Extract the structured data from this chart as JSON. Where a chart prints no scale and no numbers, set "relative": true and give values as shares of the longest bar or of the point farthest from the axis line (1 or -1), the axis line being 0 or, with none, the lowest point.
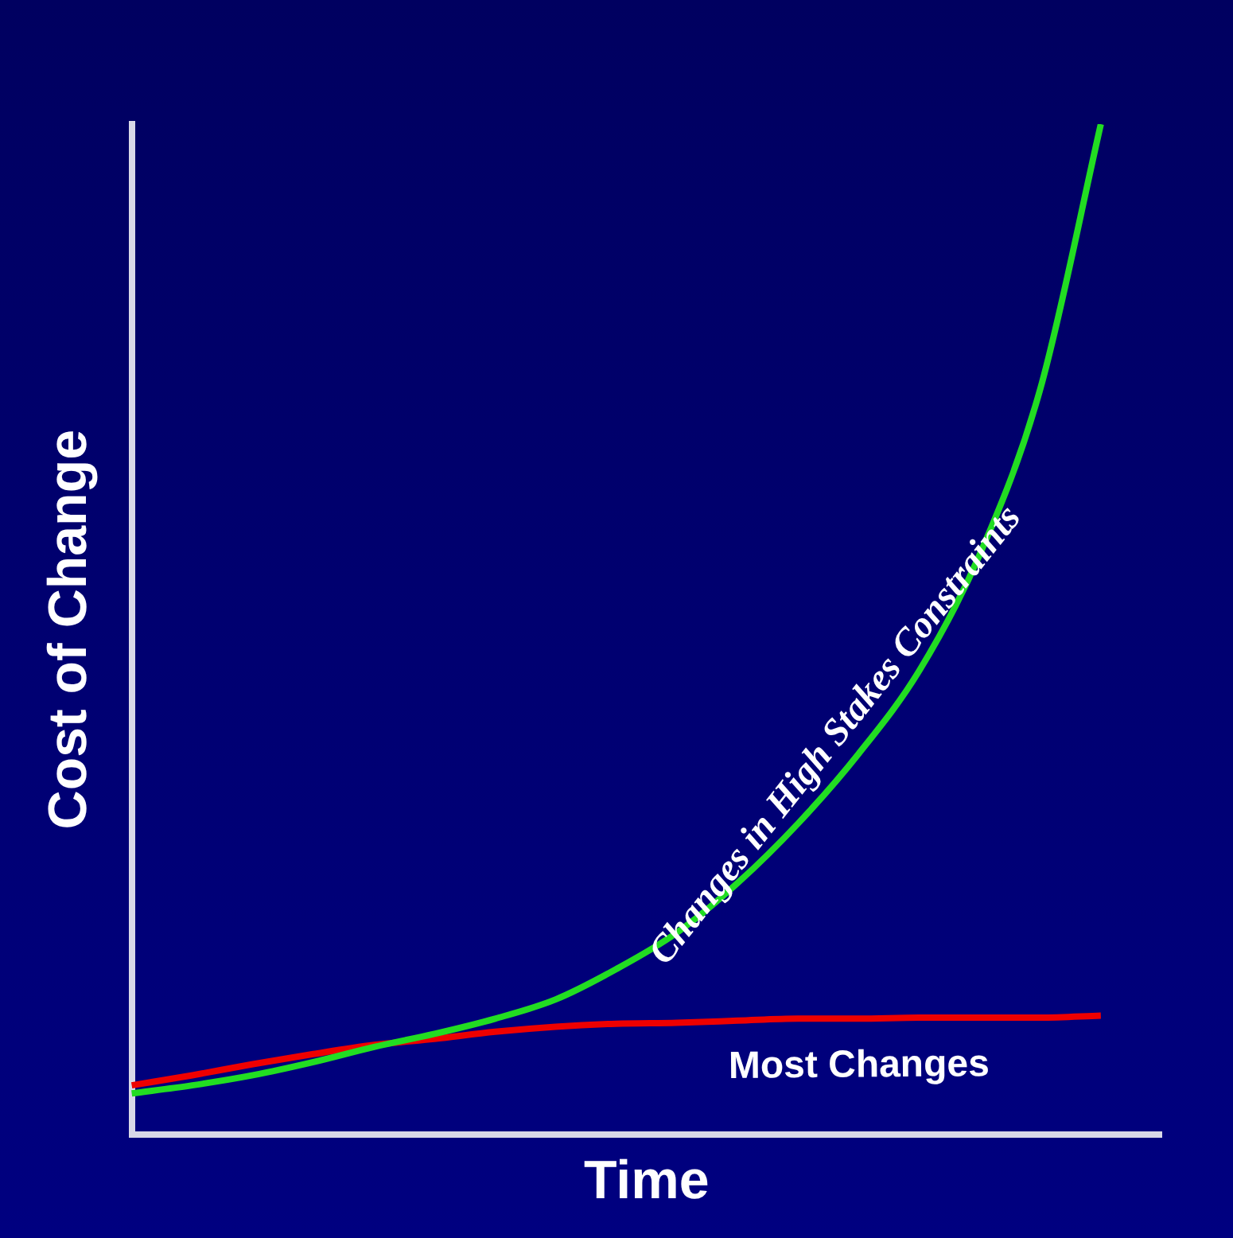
{
  "chart_data": {
    "type": "line",
    "relative": true,
    "xlabel": "Time",
    "ylabel": "Cost of Change",
    "categories": [
      null,
      null,
      null,
      null,
      null,
      null,
      null,
      null,
      null,
      null,
      null,
      null,
      null,
      null,
      null,
      null,
      null,
      null
    ],
    "series": [
      {
        "name": "Changes in High Stakes Constraints",
        "color": "#22dd22",
        "values": [
          0.041,
          0.049,
          0.059,
          0.072,
          0.087,
          0.1,
          0.115,
          0.134,
          0.164,
          0.2,
          0.249,
          0.308,
          0.377,
          0.459,
          0.574,
          0.738,
          1,
          null
        ]
      },
      {
        "name": "Most Changes",
        "color": "#ee0000",
        "values": [
          0.049,
          0.059,
          0.07,
          0.08,
          0.089,
          0.095,
          0.102,
          0.107,
          0.11,
          0.111,
          0.113,
          0.115,
          0.115,
          0.116,
          0.116,
          0.116,
          0.118,
          null
        ]
      }
    ],
    "legend": false,
    "grid": false,
    "marker": "none",
    "line_style": "solid"
  }
}
